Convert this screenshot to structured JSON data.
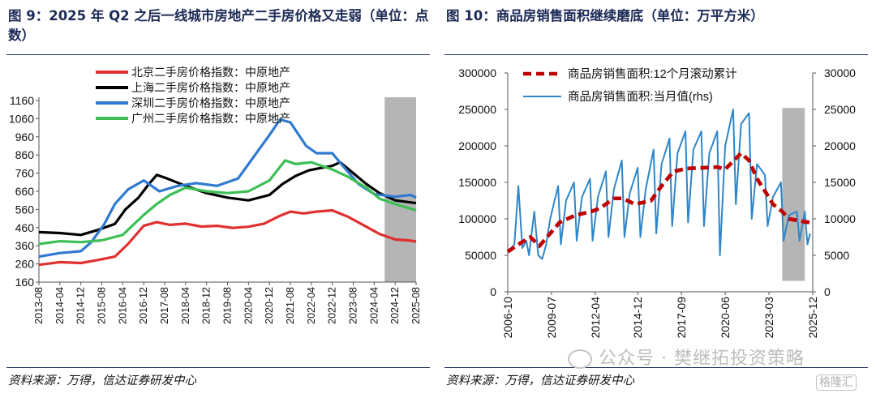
{
  "left": {
    "title": "图 9：2025 年 Q2 之后一线城市房地产二手房价格又走弱（单位：点数）",
    "source": "资料来源：万得，信达证券研发中心"
  },
  "right": {
    "title": "图 10：商品房销售面积继续磨底（单位：万平方米）",
    "source": "资料来源：万得，信达证券研发中心"
  },
  "watermark": "公众号 · 樊继拓投资策略",
  "logo_text": "格隆汇",
  "colors": {
    "beijing": "#e03030",
    "shanghai": "#000000",
    "shenzhen": "#2f7ad0",
    "guangzhou": "#3dbf55",
    "shade": "#b5b5b5",
    "rolling": "#c00000",
    "monthly": "#2f86c8",
    "title": "#1c2a56"
  },
  "chart_data": [
    {
      "type": "line",
      "y_ticks": [
        160,
        260,
        360,
        460,
        560,
        660,
        760,
        860,
        960,
        1060,
        1160
      ],
      "ylim": [
        160,
        1160
      ],
      "x_ticks": [
        "2013-08",
        "2014-04",
        "2014-12",
        "2015-08",
        "2016-04",
        "2016-12",
        "2017-08",
        "2018-04",
        "2018-12",
        "2019-08",
        "2020-04",
        "2020-12",
        "2021-08",
        "2022-04",
        "2022-12",
        "2023-08",
        "2024-04",
        "2024-12",
        "2025-08"
      ],
      "shaded_region": [
        "2024-08",
        "2025-08"
      ],
      "legend_position": "top-left",
      "series": [
        {
          "name": "北京二手房价格指数：中原地产",
          "color_key": "beijing",
          "points": [
            [
              "2013-08",
              255
            ],
            [
              "2014-04",
              270
            ],
            [
              "2014-12",
              265
            ],
            [
              "2015-06",
              280
            ],
            [
              "2016-01",
              300
            ],
            [
              "2016-06",
              370
            ],
            [
              "2016-12",
              470
            ],
            [
              "2017-05",
              490
            ],
            [
              "2017-10",
              475
            ],
            [
              "2018-04",
              482
            ],
            [
              "2018-10",
              466
            ],
            [
              "2019-04",
              470
            ],
            [
              "2019-10",
              458
            ],
            [
              "2020-04",
              465
            ],
            [
              "2020-10",
              482
            ],
            [
              "2021-04",
              525
            ],
            [
              "2021-08",
              548
            ],
            [
              "2022-01",
              538
            ],
            [
              "2022-06",
              548
            ],
            [
              "2022-12",
              555
            ],
            [
              "2023-06",
              520
            ],
            [
              "2024-01",
              465
            ],
            [
              "2024-06",
              425
            ],
            [
              "2024-12",
              395
            ],
            [
              "2025-06",
              388
            ],
            [
              "2025-08",
              383
            ]
          ]
        },
        {
          "name": "上海二手房价格指数：中原地产",
          "color_key": "shanghai",
          "points": [
            [
              "2013-08",
              435
            ],
            [
              "2014-04",
              430
            ],
            [
              "2014-12",
              420
            ],
            [
              "2015-06",
              445
            ],
            [
              "2016-01",
              480
            ],
            [
              "2016-05",
              560
            ],
            [
              "2016-10",
              625
            ],
            [
              "2017-02",
              700
            ],
            [
              "2017-05",
              750
            ],
            [
              "2017-09",
              730
            ],
            [
              "2018-04",
              690
            ],
            [
              "2018-12",
              650
            ],
            [
              "2019-08",
              625
            ],
            [
              "2020-04",
              610
            ],
            [
              "2020-12",
              640
            ],
            [
              "2021-05",
              700
            ],
            [
              "2021-10",
              745
            ],
            [
              "2022-03",
              775
            ],
            [
              "2022-08",
              790
            ],
            [
              "2022-12",
              800
            ],
            [
              "2023-03",
              820
            ],
            [
              "2023-08",
              760
            ],
            [
              "2024-01",
              700
            ],
            [
              "2024-06",
              650
            ],
            [
              "2024-12",
              610
            ],
            [
              "2025-08",
              595
            ]
          ]
        },
        {
          "name": "深圳二手房价格指数：中原地产",
          "color_key": "shenzhen",
          "points": [
            [
              "2013-08",
              300
            ],
            [
              "2014-04",
              320
            ],
            [
              "2014-12",
              330
            ],
            [
              "2015-04",
              380
            ],
            [
              "2015-09",
              480
            ],
            [
              "2016-01",
              590
            ],
            [
              "2016-06",
              670
            ],
            [
              "2016-12",
              720
            ],
            [
              "2017-06",
              660
            ],
            [
              "2018-01",
              690
            ],
            [
              "2018-08",
              705
            ],
            [
              "2019-04",
              690
            ],
            [
              "2019-12",
              730
            ],
            [
              "2020-06",
              850
            ],
            [
              "2020-12",
              970
            ],
            [
              "2021-04",
              1055
            ],
            [
              "2021-08",
              1040
            ],
            [
              "2022-02",
              910
            ],
            [
              "2022-06",
              870
            ],
            [
              "2022-12",
              870
            ],
            [
              "2023-04",
              800
            ],
            [
              "2023-10",
              700
            ],
            [
              "2024-04",
              645
            ],
            [
              "2024-12",
              630
            ],
            [
              "2025-06",
              640
            ],
            [
              "2025-08",
              625
            ]
          ]
        },
        {
          "name": "广州二手房价格指数：中原地产",
          "color_key": "guangzhou",
          "points": [
            [
              "2013-08",
              370
            ],
            [
              "2014-04",
              385
            ],
            [
              "2014-12",
              380
            ],
            [
              "2015-08",
              390
            ],
            [
              "2016-04",
              420
            ],
            [
              "2016-12",
              530
            ],
            [
              "2017-05",
              590
            ],
            [
              "2017-10",
              640
            ],
            [
              "2018-04",
              680
            ],
            [
              "2018-12",
              660
            ],
            [
              "2019-08",
              650
            ],
            [
              "2020-04",
              660
            ],
            [
              "2020-12",
              720
            ],
            [
              "2021-06",
              830
            ],
            [
              "2021-10",
              810
            ],
            [
              "2022-04",
              820
            ],
            [
              "2022-12",
              780
            ],
            [
              "2023-06",
              740
            ],
            [
              "2024-01",
              680
            ],
            [
              "2024-06",
              620
            ],
            [
              "2024-12",
              590
            ],
            [
              "2025-08",
              555
            ]
          ]
        }
      ]
    },
    {
      "type": "line",
      "y_left_ticks": [
        0,
        50000,
        100000,
        150000,
        200000,
        250000,
        300000
      ],
      "y_left_lim": [
        0,
        300000
      ],
      "y_right_ticks": [
        0,
        5000,
        10000,
        15000,
        20000,
        25000,
        30000
      ],
      "y_right_lim": [
        0,
        30000
      ],
      "x_ticks": [
        "2006-10",
        "2009-07",
        "2012-04",
        "2014-12",
        "2017-09",
        "2020-06",
        "2023-03",
        "2025-12"
      ],
      "shaded_region": [
        "2024-01",
        "2025-06"
      ],
      "legend_position": "top-center",
      "series": [
        {
          "name": "商品房销售面积:12个月滚动累计",
          "color_key": "rolling",
          "axis": "left",
          "style": "dashed",
          "points": [
            [
              "2006-10",
              55000
            ],
            [
              "2007-06",
              65000
            ],
            [
              "2008-03",
              75000
            ],
            [
              "2008-10",
              63000
            ],
            [
              "2009-06",
              80000
            ],
            [
              "2010-01",
              95000
            ],
            [
              "2011-01",
              105000
            ],
            [
              "2012-01",
              110000
            ],
            [
              "2012-08",
              115000
            ],
            [
              "2013-06",
              128000
            ],
            [
              "2014-01",
              128000
            ],
            [
              "2014-10",
              120000
            ],
            [
              "2015-10",
              125000
            ],
            [
              "2016-06",
              145000
            ],
            [
              "2017-03",
              165000
            ],
            [
              "2018-01",
              169000
            ],
            [
              "2019-01",
              170000
            ],
            [
              "2019-12",
              171000
            ],
            [
              "2020-06",
              168000
            ],
            [
              "2021-06",
              190000
            ],
            [
              "2021-12",
              180000
            ],
            [
              "2022-06",
              155000
            ],
            [
              "2023-01",
              135000
            ],
            [
              "2023-06",
              120000
            ],
            [
              "2024-01",
              110000
            ],
            [
              "2024-06",
              100000
            ],
            [
              "2025-06",
              96000
            ],
            [
              "2025-10",
              95000
            ]
          ]
        },
        {
          "name": "商品房销售面积:当月值(rhs)",
          "color_key": "monthly",
          "axis": "right",
          "style": "solid",
          "points": [
            [
              "2006-10",
              5500
            ],
            [
              "2007-03",
              6500
            ],
            [
              "2007-06",
              14500
            ],
            [
              "2007-09",
              6000
            ],
            [
              "2007-12",
              7000
            ],
            [
              "2008-02",
              5000
            ],
            [
              "2008-06",
              11000
            ],
            [
              "2008-09",
              5000
            ],
            [
              "2008-12",
              4500
            ],
            [
              "2009-03",
              6500
            ],
            [
              "2009-06",
              10000
            ],
            [
              "2009-12",
              14500
            ],
            [
              "2010-02",
              6500
            ],
            [
              "2010-06",
              12500
            ],
            [
              "2010-12",
              15000
            ],
            [
              "2011-02",
              7000
            ],
            [
              "2011-06",
              13000
            ],
            [
              "2011-12",
              15500
            ],
            [
              "2012-02",
              7000
            ],
            [
              "2012-06",
              13000
            ],
            [
              "2012-12",
              16500
            ],
            [
              "2013-02",
              7500
            ],
            [
              "2013-06",
              14000
            ],
            [
              "2013-12",
              18000
            ],
            [
              "2014-02",
              7500
            ],
            [
              "2014-06",
              13500
            ],
            [
              "2014-12",
              17000
            ],
            [
              "2015-02",
              7500
            ],
            [
              "2015-06",
              14000
            ],
            [
              "2015-12",
              19500
            ],
            [
              "2016-02",
              8000
            ],
            [
              "2016-06",
              17500
            ],
            [
              "2016-12",
              21000
            ],
            [
              "2017-02",
              9000
            ],
            [
              "2017-06",
              19000
            ],
            [
              "2017-12",
              22000
            ],
            [
              "2018-02",
              9500
            ],
            [
              "2018-06",
              19500
            ],
            [
              "2018-12",
              22000
            ],
            [
              "2019-02",
              9000
            ],
            [
              "2019-06",
              19000
            ],
            [
              "2019-12",
              22000
            ],
            [
              "2020-02",
              5000
            ],
            [
              "2020-06",
              20000
            ],
            [
              "2020-12",
              25000
            ],
            [
              "2021-02",
              12000
            ],
            [
              "2021-06",
              23000
            ],
            [
              "2021-12",
              24500
            ],
            [
              "2022-02",
              10000
            ],
            [
              "2022-06",
              17500
            ],
            [
              "2022-12",
              16000
            ],
            [
              "2023-02",
              9000
            ],
            [
              "2023-06",
              13000
            ],
            [
              "2023-12",
              15000
            ],
            [
              "2024-02",
              7000
            ],
            [
              "2024-06",
              10500
            ],
            [
              "2024-12",
              11000
            ],
            [
              "2025-02",
              7000
            ],
            [
              "2025-06",
              11000
            ],
            [
              "2025-08",
              6500
            ],
            [
              "2025-10",
              8000
            ]
          ]
        }
      ]
    }
  ]
}
